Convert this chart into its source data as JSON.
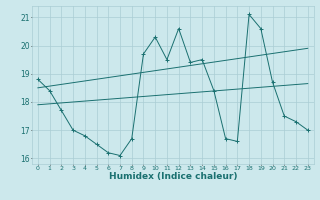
{
  "title": "",
  "xlabel": "Humidex (Indice chaleur)",
  "bg_color": "#cce8ec",
  "grid_color": "#aacdd4",
  "line_color": "#1a7070",
  "xlim": [
    -0.5,
    23.5
  ],
  "ylim": [
    15.8,
    21.4
  ],
  "yticks": [
    16,
    17,
    18,
    19,
    20,
    21
  ],
  "xticks": [
    0,
    1,
    2,
    3,
    4,
    5,
    6,
    7,
    8,
    9,
    10,
    11,
    12,
    13,
    14,
    15,
    16,
    17,
    18,
    19,
    20,
    21,
    22,
    23
  ],
  "line1_x": [
    0,
    1,
    2,
    3,
    4,
    5,
    6,
    7,
    8,
    9,
    10,
    11,
    12,
    13,
    14,
    15,
    16,
    17,
    18,
    19,
    20,
    21,
    22,
    23
  ],
  "line1_y": [
    18.8,
    18.4,
    17.7,
    17.0,
    16.8,
    16.5,
    16.2,
    16.1,
    16.7,
    19.7,
    20.3,
    19.5,
    20.6,
    19.4,
    19.5,
    18.4,
    16.7,
    16.6,
    21.1,
    20.6,
    18.7,
    17.5,
    17.3,
    17.0
  ],
  "line2_x": [
    0,
    23
  ],
  "line2_y": [
    18.5,
    19.9
  ],
  "line3_x": [
    0,
    23
  ],
  "line3_y": [
    17.9,
    18.65
  ]
}
